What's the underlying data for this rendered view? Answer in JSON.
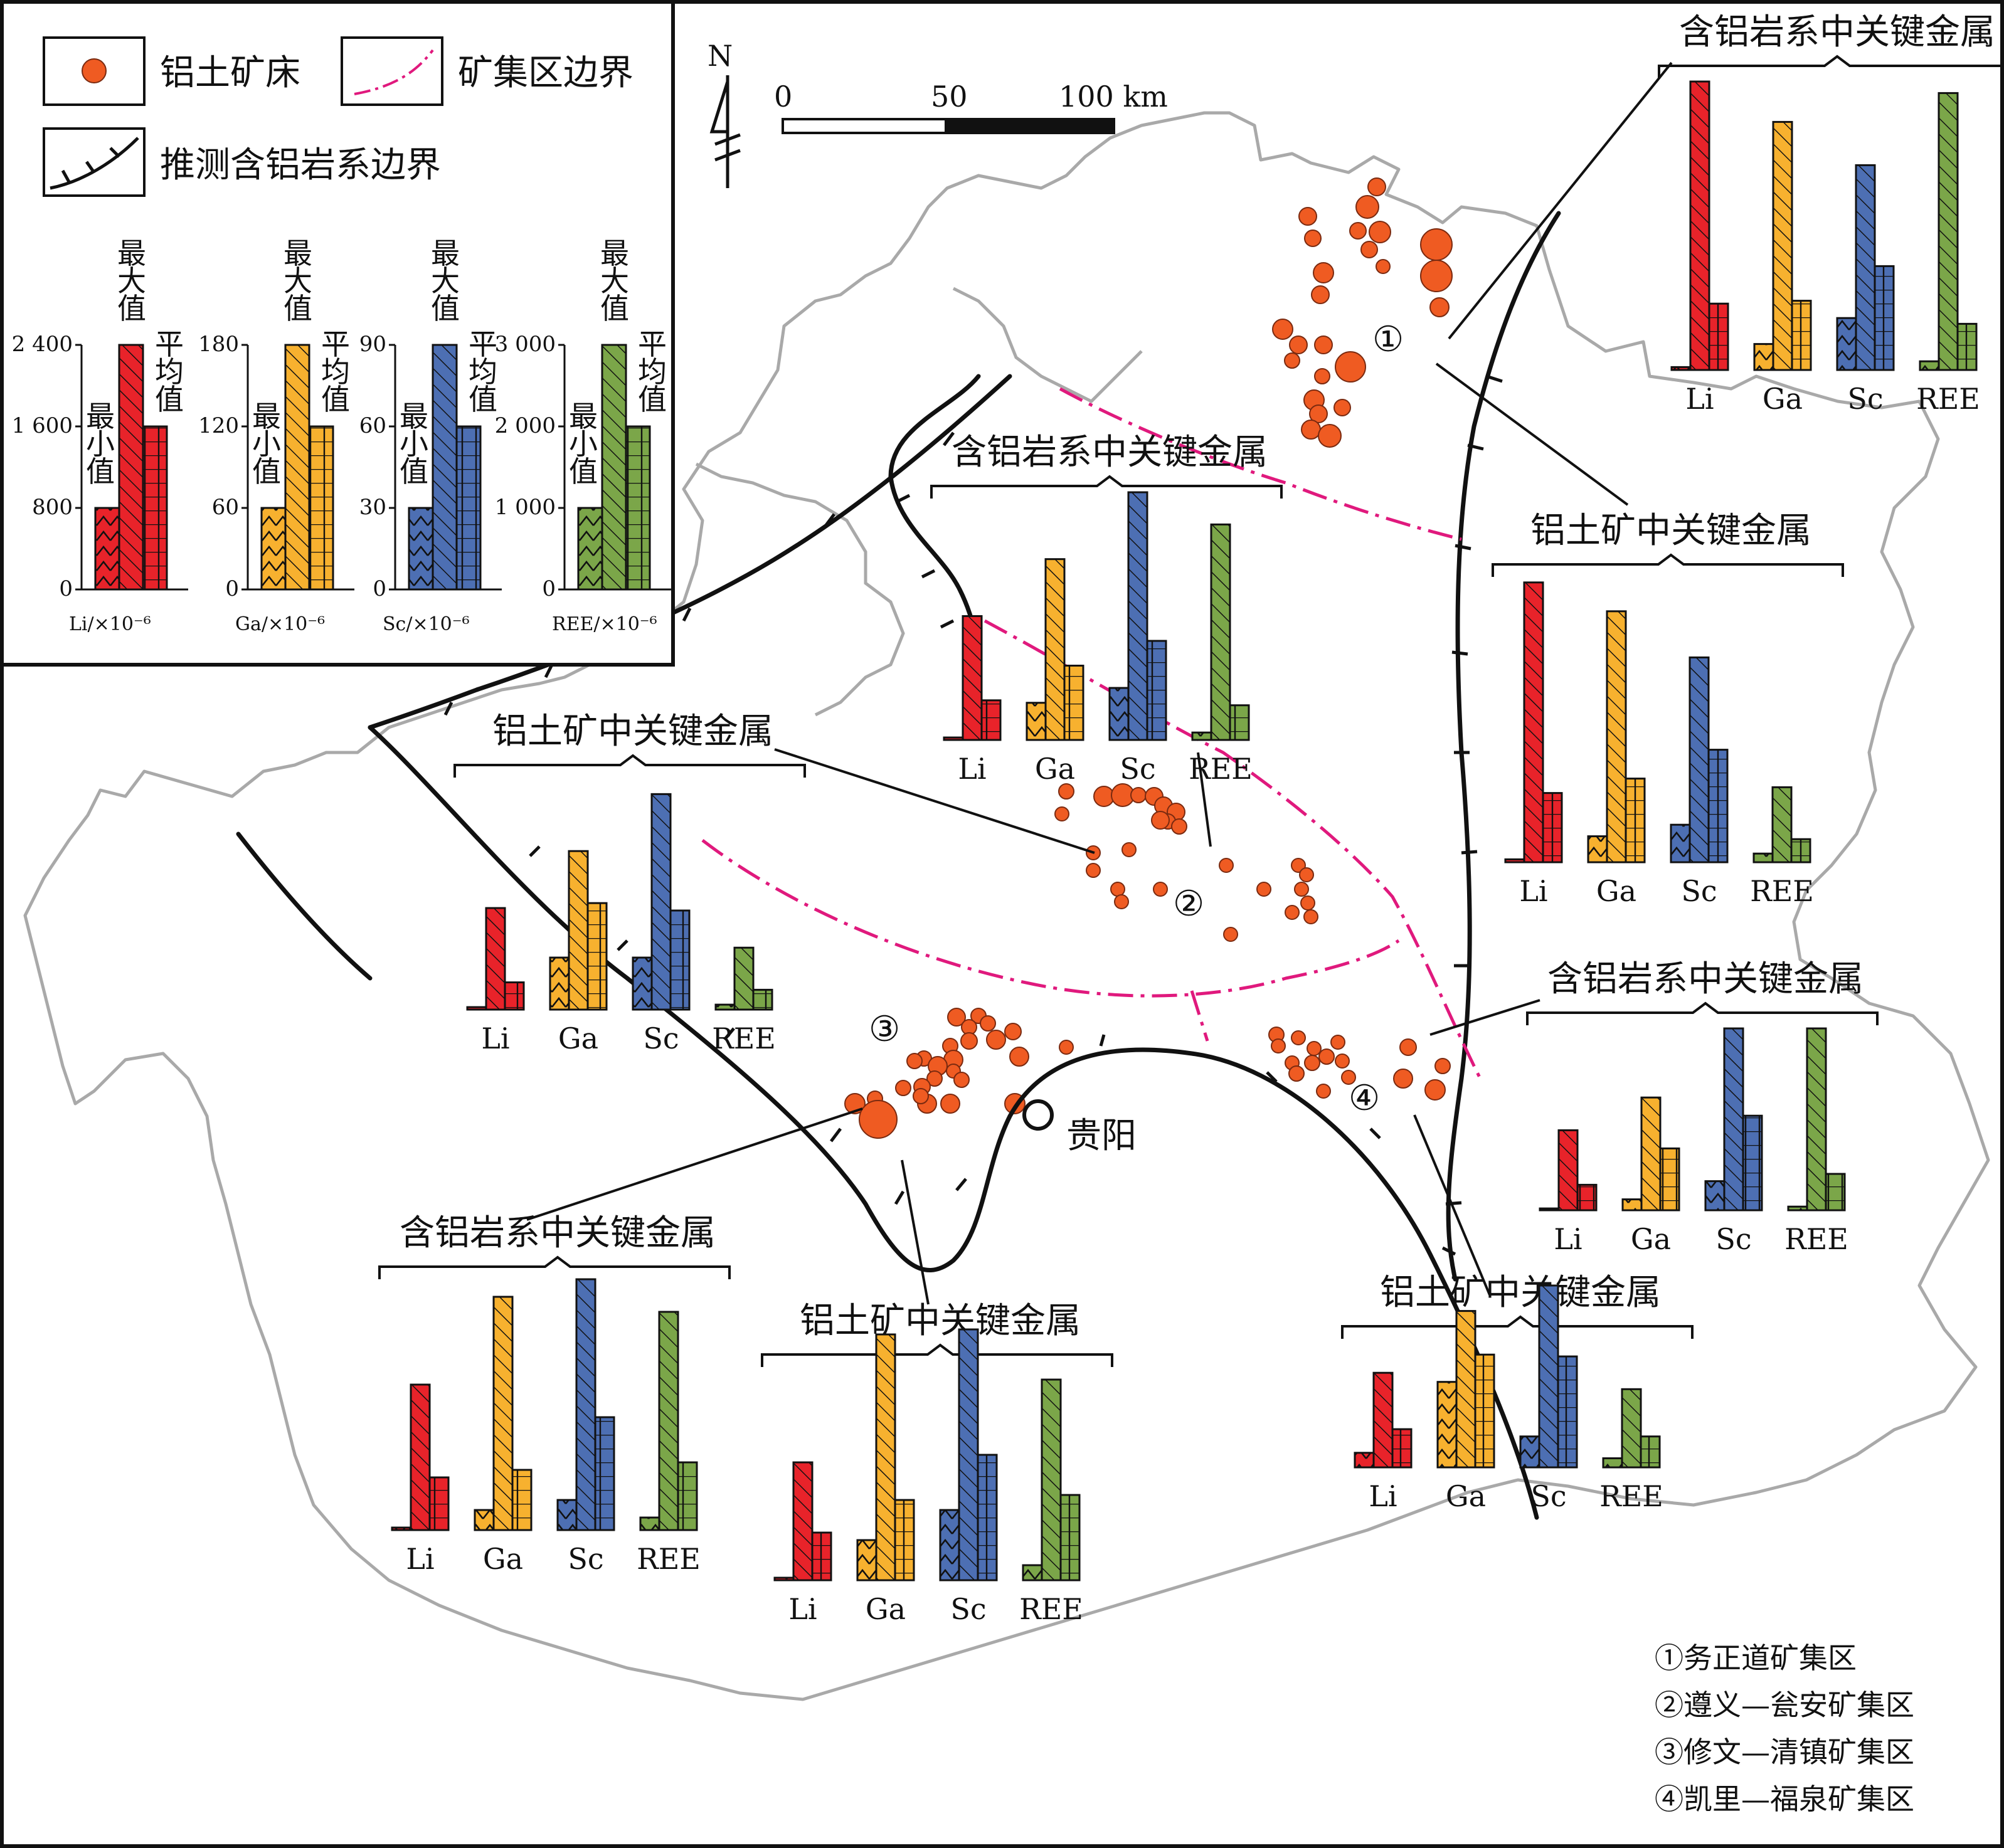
{
  "legend": {
    "deposit": "铝土矿床",
    "ore_district_boundary": "矿集区边界",
    "inferred_boundary": "推测含铝岩系边界",
    "sample_labels": {
      "max": "最大值",
      "avg": "平均值",
      "min": "最小值"
    },
    "sample_charts": [
      {
        "element": "Li",
        "unit": "Li/×10⁻⁶",
        "ticks": [
          "2 400",
          "1 600",
          "800",
          "0"
        ],
        "min": 800,
        "max": 2400,
        "avg": 1600,
        "axis_max": 2400
      },
      {
        "element": "Ga",
        "unit": "Ga/×10⁻⁶",
        "ticks": [
          "180",
          "120",
          "60",
          "0"
        ],
        "min": 60,
        "max": 180,
        "avg": 120,
        "axis_max": 180
      },
      {
        "element": "Sc",
        "unit": "Sc/×10⁻⁶",
        "ticks": [
          "90",
          "60",
          "30",
          "0"
        ],
        "min": 30,
        "max": 90,
        "avg": 60,
        "axis_max": 90
      },
      {
        "element": "REE",
        "unit": "REE/×10⁻⁶",
        "ticks": [
          "3 000",
          "2 000",
          "1 000",
          "0"
        ],
        "min": 1000,
        "max": 3000,
        "avg": 2000,
        "axis_max": 3000
      }
    ]
  },
  "colors": {
    "Li": "#e8232a",
    "Ga": "#f7b12f",
    "Sc": "#4d6fb3",
    "REE": "#7ba649",
    "deposit": "#ef5b22",
    "boundary": "#e0197d"
  },
  "north": "N",
  "scale": {
    "labels": [
      "0",
      "50",
      "100 km"
    ]
  },
  "city": "贵阳",
  "districts": [
    {
      "mark": "①",
      "name": "务正道矿集区"
    },
    {
      "mark": "②",
      "name": "遵义—瓮安矿集区"
    },
    {
      "mark": "③",
      "name": "修文—清镇矿集区"
    },
    {
      "mark": "④",
      "name": "凯里—福泉矿集区"
    }
  ],
  "district_legend": [
    "①务正道矿集区",
    "②遵义—瓮安矿集区",
    "③修文—清镇矿集区",
    "④凯里—福泉矿集区"
  ],
  "element_labels": [
    "Li",
    "Ga",
    "Sc",
    "REE"
  ],
  "chart_data": [
    {
      "type": "bar",
      "title": "含铝岩系中关键金属",
      "district": "①",
      "categories": [
        "Li",
        "Ga",
        "Sc",
        "REE"
      ],
      "series": [
        {
          "name": "最小值",
          "values": [
            0.01,
            0.09,
            0.18,
            0.03
          ]
        },
        {
          "name": "最大值",
          "values": [
            1.0,
            0.86,
            0.71,
            0.96
          ]
        },
        {
          "name": "平均值",
          "values": [
            0.23,
            0.24,
            0.36,
            0.16
          ]
        }
      ]
    },
    {
      "type": "bar",
      "title": "铝土矿中关键金属",
      "district": "①",
      "categories": [
        "Li",
        "Ga",
        "Sc",
        "REE"
      ],
      "series": [
        {
          "name": "最小值",
          "values": [
            0.01,
            0.09,
            0.13,
            0.03
          ]
        },
        {
          "name": "最大值",
          "values": [
            0.97,
            0.87,
            0.71,
            0.26
          ]
        },
        {
          "name": "平均值",
          "values": [
            0.24,
            0.29,
            0.39,
            0.08
          ]
        }
      ]
    },
    {
      "type": "bar",
      "title": "含铝岩系中关键金属",
      "district": "②",
      "categories": [
        "Li",
        "Ga",
        "Sc",
        "REE"
      ],
      "series": [
        {
          "name": "最小值",
          "values": [
            0.01,
            0.15,
            0.21,
            0.03
          ]
        },
        {
          "name": "最大值",
          "values": [
            0.5,
            0.73,
            1.0,
            0.87
          ]
        },
        {
          "name": "平均值",
          "values": [
            0.16,
            0.3,
            0.4,
            0.14
          ]
        }
      ]
    },
    {
      "type": "bar",
      "title": "铝土矿中关键金属",
      "district": "②",
      "categories": [
        "Li",
        "Ga",
        "Sc",
        "REE"
      ],
      "series": [
        {
          "name": "最小值",
          "values": [
            0.01,
            0.21,
            0.21,
            0.02
          ]
        },
        {
          "name": "最大值",
          "values": [
            0.41,
            0.64,
            0.87,
            0.25
          ]
        },
        {
          "name": "平均值",
          "values": [
            0.11,
            0.43,
            0.4,
            0.08
          ]
        }
      ]
    },
    {
      "type": "bar",
      "title": "含铝岩系中关键金属",
      "district": "③",
      "categories": [
        "Li",
        "Ga",
        "Sc",
        "REE"
      ],
      "series": [
        {
          "name": "最小值",
          "values": [
            0.01,
            0.08,
            0.12,
            0.05
          ]
        },
        {
          "name": "最大值",
          "values": [
            0.58,
            0.93,
            1.0,
            0.87
          ]
        },
        {
          "name": "平均值",
          "values": [
            0.21,
            0.24,
            0.45,
            0.27
          ]
        }
      ]
    },
    {
      "type": "bar",
      "title": "铝土矿中关键金属",
      "district": "③",
      "categories": [
        "Li",
        "Ga",
        "Sc",
        "REE"
      ],
      "series": [
        {
          "name": "最小值",
          "values": [
            0.01,
            0.16,
            0.28,
            0.06
          ]
        },
        {
          "name": "最大值",
          "values": [
            0.47,
            0.98,
            1.0,
            0.8
          ]
        },
        {
          "name": "平均值",
          "values": [
            0.19,
            0.32,
            0.5,
            0.34
          ]
        }
      ]
    },
    {
      "type": "bar",
      "title": "含铝岩系中关键金属",
      "district": "④",
      "categories": [
        "Li",
        "Ga",
        "Sc",
        "REE"
      ],
      "series": [
        {
          "name": "最小值",
          "values": [
            0.01,
            0.06,
            0.16,
            0.02
          ]
        },
        {
          "name": "最大值",
          "values": [
            0.44,
            0.62,
            1.0,
            1.0
          ]
        },
        {
          "name": "平均值",
          "values": [
            0.14,
            0.34,
            0.52,
            0.2
          ]
        }
      ]
    },
    {
      "type": "bar",
      "title": "铝土矿中关键金属",
      "district": "④",
      "categories": [
        "Li",
        "Ga",
        "Sc",
        "REE"
      ],
      "series": [
        {
          "name": "最小值",
          "values": [
            0.08,
            0.47,
            0.17,
            0.05
          ]
        },
        {
          "name": "最大值",
          "values": [
            0.52,
            0.86,
            1.0,
            0.43
          ]
        },
        {
          "name": "平均值",
          "values": [
            0.21,
            0.62,
            0.61,
            0.17
          ]
        }
      ]
    }
  ]
}
